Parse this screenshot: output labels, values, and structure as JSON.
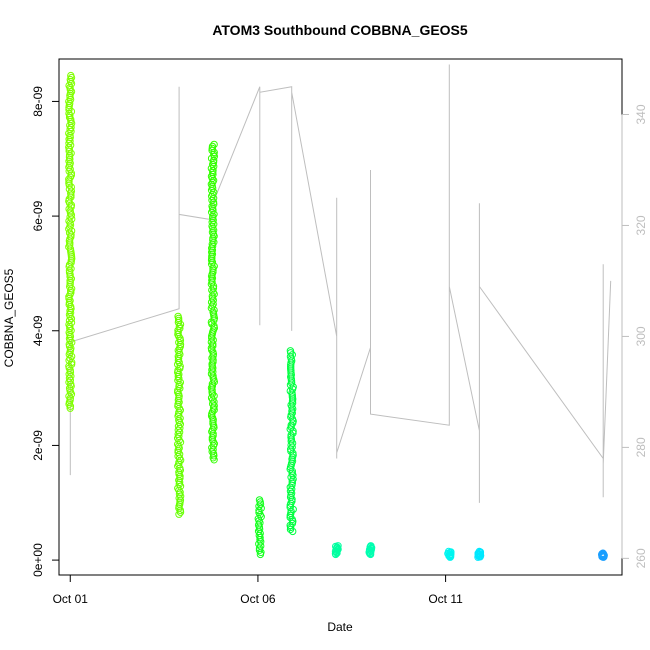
{
  "chart_data": {
    "type": "scatter",
    "title": "ATOM3 Southbound COBBNA_GEOS5",
    "xlabel": "Date",
    "ylabel": "COBBNA_GEOS5",
    "x_unit": "day of October 2016",
    "xlim": [
      0.7,
      15.7
    ],
    "ylim": [
      -2.6e-10,
      8.74e-09
    ],
    "y2lim": [
      257,
      350
    ],
    "x_ticks": [
      {
        "value": 1,
        "label": "Oct 01"
      },
      {
        "value": 6,
        "label": "Oct 06"
      },
      {
        "value": 11,
        "label": "Oct 11"
      }
    ],
    "y_ticks": [
      {
        "value": 0,
        "label": "0e+00"
      },
      {
        "value": 2e-09,
        "label": "2e-09"
      },
      {
        "value": 4e-09,
        "label": "4e-09"
      },
      {
        "value": 6e-09,
        "label": "6e-09"
      },
      {
        "value": 8e-09,
        "label": "8e-09"
      }
    ],
    "y2_ticks": [
      {
        "value": 260,
        "label": "260"
      },
      {
        "value": 280,
        "label": "280"
      },
      {
        "value": 300,
        "label": "300"
      },
      {
        "value": 320,
        "label": "320"
      },
      {
        "value": 340,
        "label": "340"
      }
    ],
    "series": [
      {
        "role": "COBBNA_GEOS5 points (color by time)",
        "clusters": [
          {
            "x": 1.0,
            "ymin": 2.65e-09,
            "ymax": 8.45e-09,
            "color": "#7fff00"
          },
          {
            "x": 3.9,
            "ymin": 8e-10,
            "ymax": 4.25e-09,
            "color": "#66ff00"
          },
          {
            "x": 4.8,
            "ymin": 1.75e-09,
            "ymax": 7.25e-09,
            "color": "#33ff00"
          },
          {
            "x": 6.05,
            "ymin": 1e-10,
            "ymax": 1.05e-09,
            "color": "#12ff1c"
          },
          {
            "x": 6.9,
            "ymin": 5e-10,
            "ymax": 3.65e-09,
            "color": "#00ff40"
          },
          {
            "x": 8.1,
            "ymin": 1e-10,
            "ymax": 2.5e-10,
            "color": "#00ffa0"
          },
          {
            "x": 9.0,
            "ymin": 1e-10,
            "ymax": 2.5e-10,
            "color": "#00ffb0"
          },
          {
            "x": 11.1,
            "ymin": 5e-11,
            "ymax": 1.5e-10,
            "color": "#00f5f0"
          },
          {
            "x": 11.9,
            "ymin": 5e-11,
            "ymax": 1.5e-10,
            "color": "#00e8ff"
          },
          {
            "x": 15.2,
            "ymin": 5e-11,
            "ymax": 1.2e-10,
            "color": "#1a9fff"
          }
        ]
      },
      {
        "role": "right-axis grey line",
        "color": "#bebebe",
        "points": [
          [
            1.0,
            299
          ],
          [
            1.0,
            275
          ],
          [
            1.0,
            299
          ],
          [
            3.9,
            305
          ],
          [
            3.9,
            345
          ],
          [
            3.9,
            322
          ],
          [
            4.8,
            321
          ],
          [
            4.8,
            324
          ],
          [
            6.05,
            345
          ],
          [
            6.05,
            302
          ],
          [
            6.05,
            344
          ],
          [
            6.9,
            345
          ],
          [
            6.9,
            301
          ],
          [
            6.9,
            344
          ],
          [
            8.1,
            300
          ],
          [
            8.1,
            278
          ],
          [
            8.1,
            325
          ],
          [
            8.1,
            279
          ],
          [
            9.0,
            298
          ],
          [
            9.0,
            330
          ],
          [
            9.0,
            290
          ],
          [
            9.0,
            286
          ],
          [
            11.1,
            284
          ],
          [
            11.1,
            310
          ],
          [
            11.1,
            349
          ],
          [
            11.1,
            309
          ],
          [
            11.9,
            283
          ],
          [
            11.9,
            324
          ],
          [
            11.9,
            270
          ],
          [
            11.9,
            309
          ],
          [
            15.2,
            278
          ],
          [
            15.2,
            271
          ],
          [
            15.2,
            313
          ],
          [
            15.2,
            277
          ],
          [
            15.4,
            310
          ]
        ]
      }
    ]
  }
}
